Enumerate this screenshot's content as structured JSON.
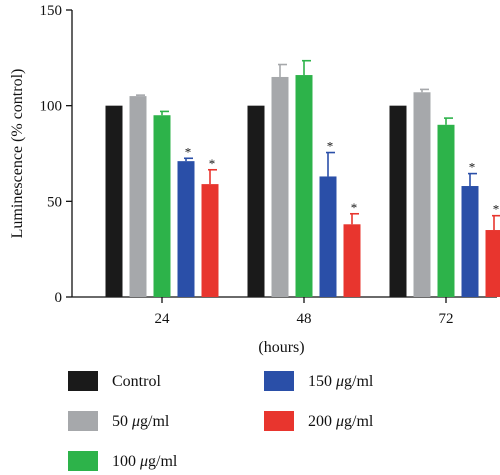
{
  "chart_data": {
    "type": "bar",
    "title": "",
    "xlabel": "(hours)",
    "ylabel": "Luminescence (% control)",
    "ylim": [
      0,
      150
    ],
    "yticks": [
      0,
      50,
      100,
      150
    ],
    "categories": [
      "24",
      "48",
      "72"
    ],
    "series": [
      {
        "name": "Control",
        "name_unit": "",
        "color": "#1a1a1a",
        "values": [
          100,
          100,
          100
        ],
        "errors": [
          0,
          0,
          0
        ],
        "significant": [
          false,
          false,
          false
        ]
      },
      {
        "name": "50 ",
        "name_unit": "μg/ml",
        "color": "#a6a8ab",
        "values": [
          105,
          115,
          107
        ],
        "errors": [
          0.5,
          6.5,
          1.5
        ],
        "significant": [
          false,
          false,
          false
        ]
      },
      {
        "name": "100 ",
        "name_unit": "μg/ml",
        "color": "#2db34a",
        "values": [
          95,
          116,
          90
        ],
        "errors": [
          2,
          7.5,
          3.5
        ],
        "significant": [
          false,
          false,
          false
        ]
      },
      {
        "name": "150 ",
        "name_unit": "μg/ml",
        "color": "#2a4fa8",
        "values": [
          71,
          63,
          58
        ],
        "errors": [
          1.5,
          12.5,
          6.5
        ],
        "significant": [
          true,
          true,
          true
        ]
      },
      {
        "name": "200 ",
        "name_unit": "μg/ml",
        "color": "#e8352e",
        "values": [
          59,
          38,
          35
        ],
        "errors": [
          7.5,
          5.5,
          7.5
        ],
        "significant": [
          true,
          true,
          true
        ]
      }
    ],
    "significance_marker": "*",
    "grid": false,
    "legend_position": "bottom"
  }
}
